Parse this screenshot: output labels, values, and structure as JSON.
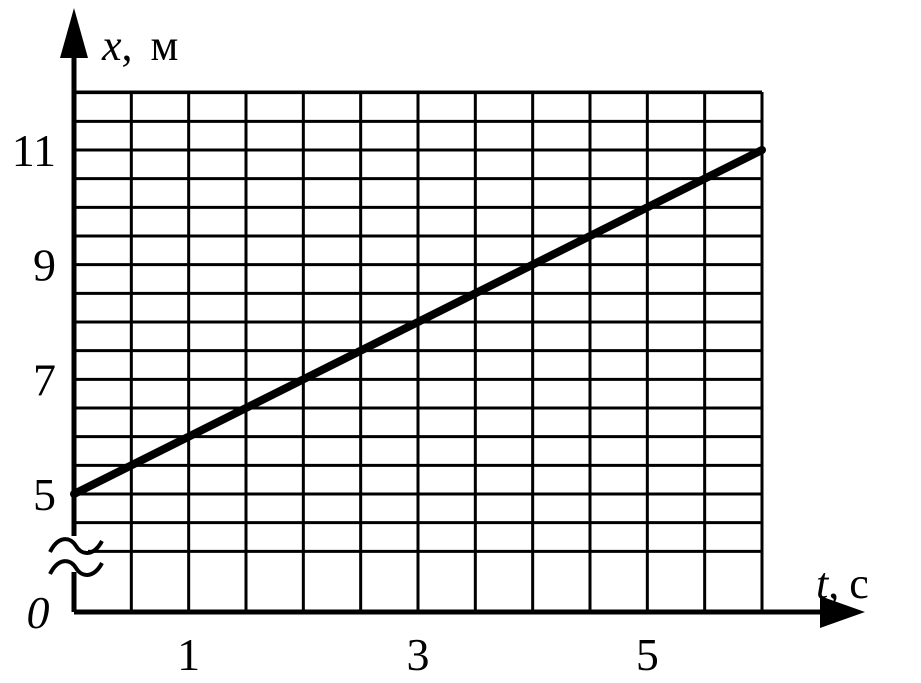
{
  "chart_data": {
    "type": "line",
    "title": "",
    "xlabel": {
      "var": "t",
      "unit": "с",
      "sep": ","
    },
    "ylabel": {
      "var": "x",
      "unit": "м",
      "sep": ","
    },
    "x_axis": {
      "range": [
        0,
        6
      ],
      "grid_step": 0.5,
      "tick_labels": [
        {
          "value": 1,
          "text": "1"
        },
        {
          "value": 3,
          "text": "3"
        },
        {
          "value": 5,
          "text": "5"
        }
      ]
    },
    "y_axis": {
      "range": [
        5,
        12
      ],
      "grid_step": 0.5,
      "broken_axis": true,
      "origin_label": "0",
      "tick_labels": [
        {
          "value": 5,
          "text": "5"
        },
        {
          "value": 7,
          "text": "7"
        },
        {
          "value": 9,
          "text": "9"
        },
        {
          "value": 11,
          "text": "11"
        }
      ]
    },
    "grid": true,
    "series": [
      {
        "x": [
          0,
          6
        ],
        "y": [
          5,
          11
        ]
      }
    ]
  }
}
